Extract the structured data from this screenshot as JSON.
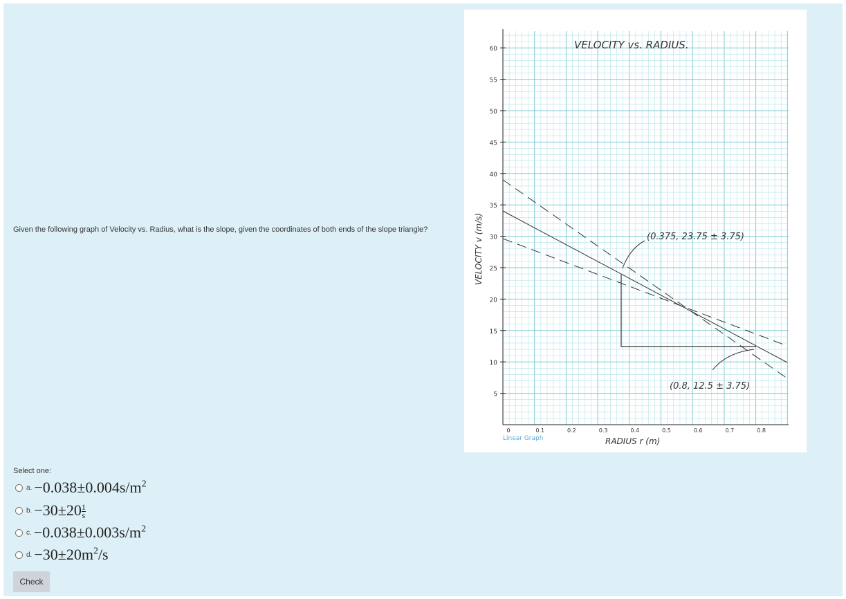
{
  "question": "Given the following graph of Velocity vs. Radius, what is the slope, given the coordinates of both ends of the slope triangle?",
  "graph": {
    "title": "VELOCITY vs. RADIUS.",
    "y_axis_label": "VELOCITY v (m/s)",
    "x_axis_label": "RADIUS r (m)",
    "y_labels": [
      "5",
      "10",
      "15",
      "20",
      "25",
      "30",
      "35",
      "40",
      "45",
      "50",
      "55",
      "60"
    ],
    "x_labels": [
      "0",
      "0.1",
      "0.2",
      "0.3",
      "0.4",
      "0.5",
      "0.6",
      "0.7",
      "0.8"
    ],
    "point_1": "(0.375, 23.75 ± 3.75)",
    "point_2": "(0.8, 12.5 ± 3.75)",
    "caption": "Linear Graph"
  },
  "prompt": "Select one:",
  "options": [
    {
      "letter": "a.",
      "text": "−0.038±0.004s/m",
      "sup": "2"
    },
    {
      "letter": "b.",
      "text": "−30±20",
      "numerator": "1",
      "denominator": "s"
    },
    {
      "letter": "c.",
      "text": "−0.038±0.003s/m",
      "sup": "2"
    },
    {
      "letter": "d.",
      "text": "−30±20m",
      "sup": "2",
      "after": "/s"
    }
  ],
  "button": "Check"
}
